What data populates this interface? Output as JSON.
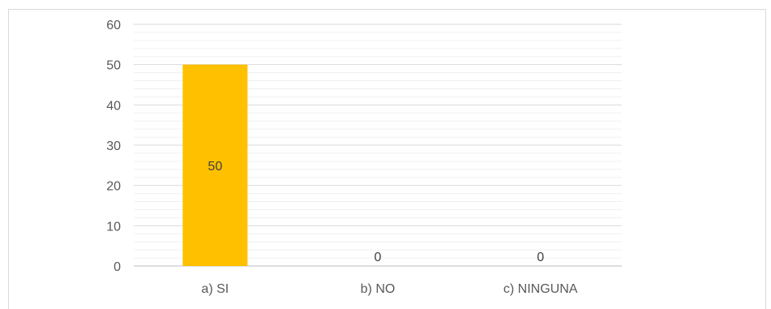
{
  "chart_data": {
    "type": "bar",
    "categories": [
      "a) SI",
      "b) NO",
      "c) NINGUNA"
    ],
    "values": [
      50,
      0,
      0
    ],
    "data_labels": [
      "50",
      "0",
      "0"
    ],
    "ylim": [
      0,
      60
    ],
    "yticks": [
      "0",
      "10",
      "20",
      "30",
      "40",
      "50",
      "60"
    ],
    "minor_gridlines": true,
    "legend": "none",
    "colors": {
      "bar": "#FFC000",
      "gridline": "#d9d9d9",
      "text": "#595959"
    }
  }
}
